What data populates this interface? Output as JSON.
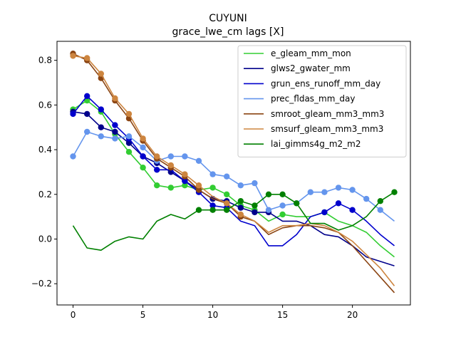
{
  "chart_data": {
    "type": "line",
    "title": "CUYUNI",
    "subtitle": "grace_lwe_cm lags [X]",
    "xlim": [
      -1.15,
      24.15
    ],
    "ylim": [
      -0.295,
      0.885
    ],
    "xticks": [
      0,
      5,
      10,
      15,
      20
    ],
    "yticks": [
      -0.2,
      0.0,
      0.2,
      0.4,
      0.6,
      0.8
    ],
    "ytick_labels": [
      "−0.2",
      "0.0",
      "0.2",
      "0.4",
      "0.6",
      "0.8"
    ],
    "legend_position": "top-right",
    "x": [
      0,
      1,
      2,
      3,
      4,
      5,
      6,
      7,
      8,
      9,
      10,
      11,
      12,
      13,
      14,
      15,
      16,
      17,
      18,
      19,
      20,
      21,
      22,
      23
    ],
    "series": [
      {
        "name": "e_gleam_mm_mon",
        "color": "#32cd32",
        "values": [
          0.58,
          0.62,
          0.57,
          0.47,
          0.39,
          0.32,
          0.24,
          0.23,
          0.24,
          0.22,
          0.23,
          0.2,
          0.15,
          0.13,
          0.08,
          0.11,
          0.1,
          0.1,
          0.12,
          0.08,
          0.06,
          0.03,
          -0.03,
          -0.08
        ],
        "markers": [
          0,
          1,
          2,
          3,
          4,
          5,
          6,
          7,
          8,
          9,
          10,
          11,
          12,
          13,
          15,
          18
        ]
      },
      {
        "name": "glws2_gwater_mm",
        "color": "#00008b",
        "values": [
          0.57,
          0.56,
          0.5,
          0.48,
          0.43,
          0.37,
          0.34,
          0.3,
          0.26,
          0.22,
          0.18,
          0.17,
          0.14,
          0.12,
          0.12,
          0.08,
          0.08,
          0.06,
          0.02,
          0.01,
          -0.03,
          -0.08,
          -0.1,
          -0.12
        ],
        "markers": [
          0,
          1,
          2,
          3,
          4,
          5,
          6,
          7,
          8,
          9,
          10,
          11,
          12,
          13,
          14
        ]
      },
      {
        "name": "grun_ens_runoff_mm_day",
        "color": "#0000cd",
        "values": [
          0.56,
          0.64,
          0.58,
          0.51,
          0.45,
          0.37,
          0.31,
          0.31,
          0.26,
          0.21,
          0.15,
          0.14,
          0.08,
          0.06,
          -0.03,
          -0.03,
          0.02,
          0.1,
          0.12,
          0.16,
          0.13,
          0.08,
          0.02,
          -0.03
        ],
        "markers": [
          0,
          1,
          2,
          3,
          4,
          5,
          6,
          8,
          9,
          10,
          11,
          18,
          19,
          20
        ]
      },
      {
        "name": "prec_fldas_mm_day",
        "color": "#6495ed",
        "values": [
          0.37,
          0.48,
          0.46,
          0.45,
          0.46,
          0.41,
          0.35,
          0.37,
          0.37,
          0.35,
          0.29,
          0.28,
          0.24,
          0.25,
          0.13,
          0.15,
          0.16,
          0.21,
          0.21,
          0.23,
          0.22,
          0.18,
          0.13,
          0.08
        ],
        "markers": [
          0,
          1,
          2,
          3,
          4,
          5,
          6,
          7,
          8,
          9,
          10,
          11,
          12,
          13,
          14,
          15,
          16,
          17,
          18,
          19,
          20,
          21,
          22
        ]
      },
      {
        "name": "smroot_gleam_mm3_mm3",
        "color": "#8b4513",
        "values": [
          0.83,
          0.8,
          0.72,
          0.62,
          0.54,
          0.44,
          0.36,
          0.32,
          0.28,
          0.22,
          0.18,
          0.16,
          0.1,
          0.08,
          0.02,
          0.05,
          0.06,
          0.06,
          0.05,
          0.03,
          -0.03,
          -0.1,
          -0.17,
          -0.24
        ],
        "markers": [
          0,
          1,
          2,
          3,
          4,
          5,
          6,
          7,
          8,
          9,
          11,
          12
        ]
      },
      {
        "name": "smsurf_gleam_mm3_mm3",
        "color": "#cd853f",
        "values": [
          0.82,
          0.81,
          0.74,
          0.63,
          0.56,
          0.45,
          0.37,
          0.33,
          0.29,
          0.24,
          0.19,
          0.16,
          0.11,
          0.08,
          0.03,
          0.06,
          0.06,
          0.07,
          0.06,
          0.03,
          -0.01,
          -0.07,
          -0.13,
          -0.21
        ],
        "markers": [
          0,
          1,
          2,
          3,
          4,
          5,
          6,
          7,
          8,
          9,
          11,
          12
        ]
      },
      {
        "name": "lai_gimms4g_m2_m2",
        "color": "#008000",
        "values": [
          0.06,
          -0.04,
          -0.05,
          -0.01,
          0.01,
          0.0,
          0.08,
          0.11,
          0.09,
          0.13,
          0.13,
          0.13,
          0.17,
          0.15,
          0.2,
          0.2,
          0.16,
          0.07,
          0.07,
          0.04,
          0.06,
          0.1,
          0.17,
          0.21
        ],
        "markers": [
          9,
          10,
          11,
          12,
          13,
          14,
          15,
          16,
          22,
          23
        ]
      }
    ]
  }
}
